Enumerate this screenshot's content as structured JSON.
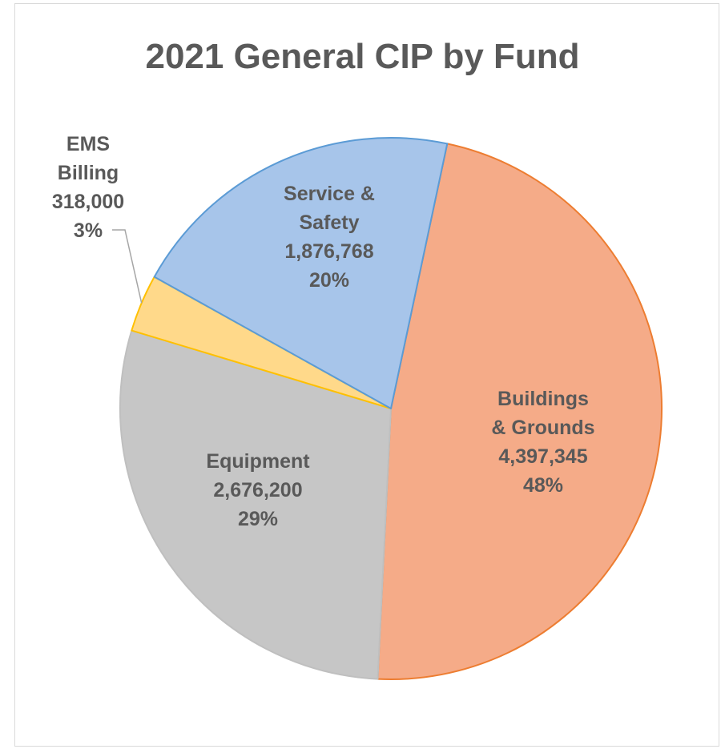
{
  "chart_data": {
    "type": "pie",
    "title": "2021 General CIP by Fund",
    "slices": [
      {
        "label": [
          "Buildings",
          "& Grounds"
        ],
        "value": 4397345,
        "value_label": "4,397,345",
        "percent_label": "48%",
        "fill": "#F5AB88",
        "stroke": "#ED7D31"
      },
      {
        "label": [
          "Equipment"
        ],
        "value": 2676200,
        "value_label": "2,676,200",
        "percent_label": "29%",
        "fill": "#C6C6C6",
        "stroke": "#BFBFBF"
      },
      {
        "label": [
          "EMS",
          "Billing"
        ],
        "value": 318000,
        "value_label": "318,000",
        "percent_label": "3%",
        "fill": "#FFD98A",
        "stroke": "#FFC000"
      },
      {
        "label": [
          "Service &",
          "Safety"
        ],
        "value": 1876768,
        "value_label": "1,876,768",
        "percent_label": "20%",
        "fill": "#A7C5EA",
        "stroke": "#5B9BD5"
      }
    ],
    "legend": "none"
  }
}
